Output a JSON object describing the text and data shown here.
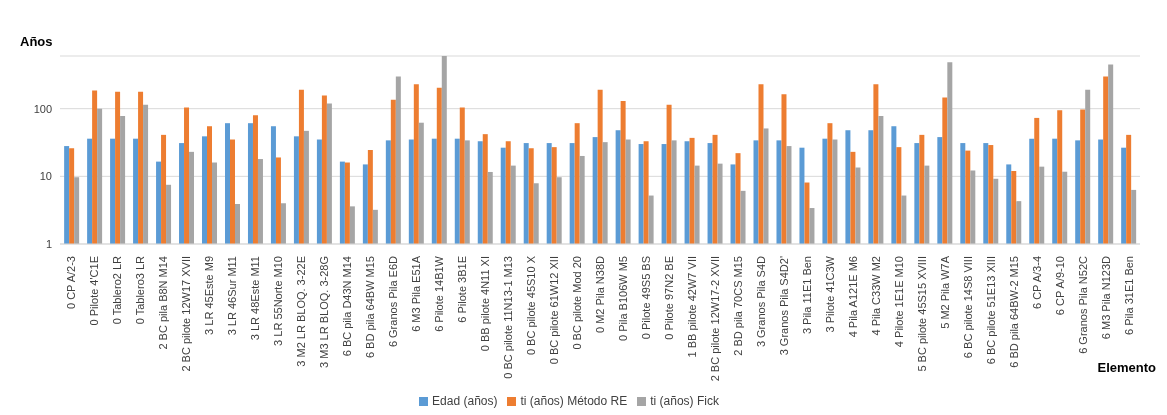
{
  "chart_data": {
    "type": "bar",
    "ylabel": "Años",
    "xlabel": "Elemento",
    "log": true,
    "grid": "y",
    "legend": "bottom",
    "ylim": [
      1,
      600
    ],
    "yticks": [
      1,
      10,
      100
    ],
    "categories": [
      "0 CP A/2-3",
      "0 Pilote 4'C1E",
      "0 Tablero2 LR",
      "0 Tablero3 LR",
      "2 BC pila B8N M14",
      "2 BC pilote 12W17 XVII",
      "3 LR 45Este M9",
      "3 LR 46Sur M11",
      "3 LR 48Este M11",
      "3 LR 55Norte M10",
      "3 M2 LR BLOQ. 3-22E",
      "3 M3 LR BLOQ. 3-28G",
      "6 BC pila D43N M14",
      "6 BD pila 64BW M15",
      "6 Granos Pila E6D",
      "6 M3 Pila E51A",
      "6 Pilote 14B1W",
      "6 Pilote 3B1E",
      "0 BB pilote 4N11 XI",
      "0 BC pilote 11N13-1 M13",
      "0 BC pilote 45S10 X",
      "0 BC pilote 61W12 XII",
      "0 BC pilote Mod 20",
      "0 M2 Pila N38D",
      "0 Pila B106W M5",
      "0 Pilote 49S5 BS",
      "0 Pilote 97N2 BE",
      "1 BB pilote 42W7 VII",
      "2 BC pilote 12W17-2 XVII",
      "2 BD pila 70CS M15",
      "3 Granos Pila S4D",
      "3 Granos Pila S4D2'",
      "3 Pila 11E1 Ben",
      "3 Pilote 41C3W",
      "4 Pila A121E M6",
      "4 Pila C33W M2",
      "4 Pilote 1E1E M10",
      "5 BC pilote 45S15 XVIII",
      "5 M2 Pila W7A",
      "6 BC pilote 14S8 VIII",
      "6 BC pilote 51E13 XIII",
      "6 BD pila 64BW-2 M15",
      "6 CP A/3-4",
      "6 CP A/9-10",
      "6 Granos Pila N52C",
      "6 M3 Pila N123D",
      "6 Pila 31E1 Ben"
    ],
    "series": [
      {
        "name": "Edad (años)",
        "color": "#5b9bd5",
        "values": [
          28,
          36,
          36,
          36,
          16.5,
          31,
          39,
          61,
          61,
          55,
          39,
          35,
          16.5,
          15,
          34,
          35,
          36,
          36,
          33,
          26.5,
          31,
          31,
          31,
          38,
          48,
          30,
          30,
          33,
          31,
          15,
          34,
          34,
          26.5,
          36,
          48,
          48,
          55,
          31,
          38,
          31,
          31,
          15,
          36,
          36,
          34,
          35,
          26.5
        ]
      },
      {
        "name": "ti (años) Método RE",
        "color": "#ed7d31",
        "values": [
          26,
          186,
          178,
          178,
          41,
          104,
          55,
          35,
          80,
          19,
          190,
          156,
          16,
          24.5,
          135,
          229,
          204,
          104,
          42,
          33,
          26,
          27,
          61,
          190,
          130,
          33,
          114,
          37,
          41,
          22,
          229,
          163,
          8.1,
          61,
          23,
          229,
          27,
          41,
          146,
          24,
          29,
          12,
          73,
          95,
          97,
          298,
          41
        ]
      },
      {
        "name": "ti (años) Fick",
        "color": "#a5a5a5",
        "values": [
          9.7,
          100,
          78,
          114,
          7.5,
          23,
          16,
          3.9,
          18,
          4,
          47,
          119,
          3.6,
          3.2,
          298,
          62,
          600,
          34,
          11.6,
          14.4,
          7.9,
          9.7,
          20,
          32,
          35,
          5.2,
          34,
          14.4,
          15.4,
          6.1,
          51,
          28,
          3.4,
          35,
          13.5,
          78,
          5.2,
          14.4,
          485,
          12.2,
          9.2,
          4.3,
          13.9,
          11.7,
          190,
          448,
          6.3
        ]
      }
    ]
  }
}
